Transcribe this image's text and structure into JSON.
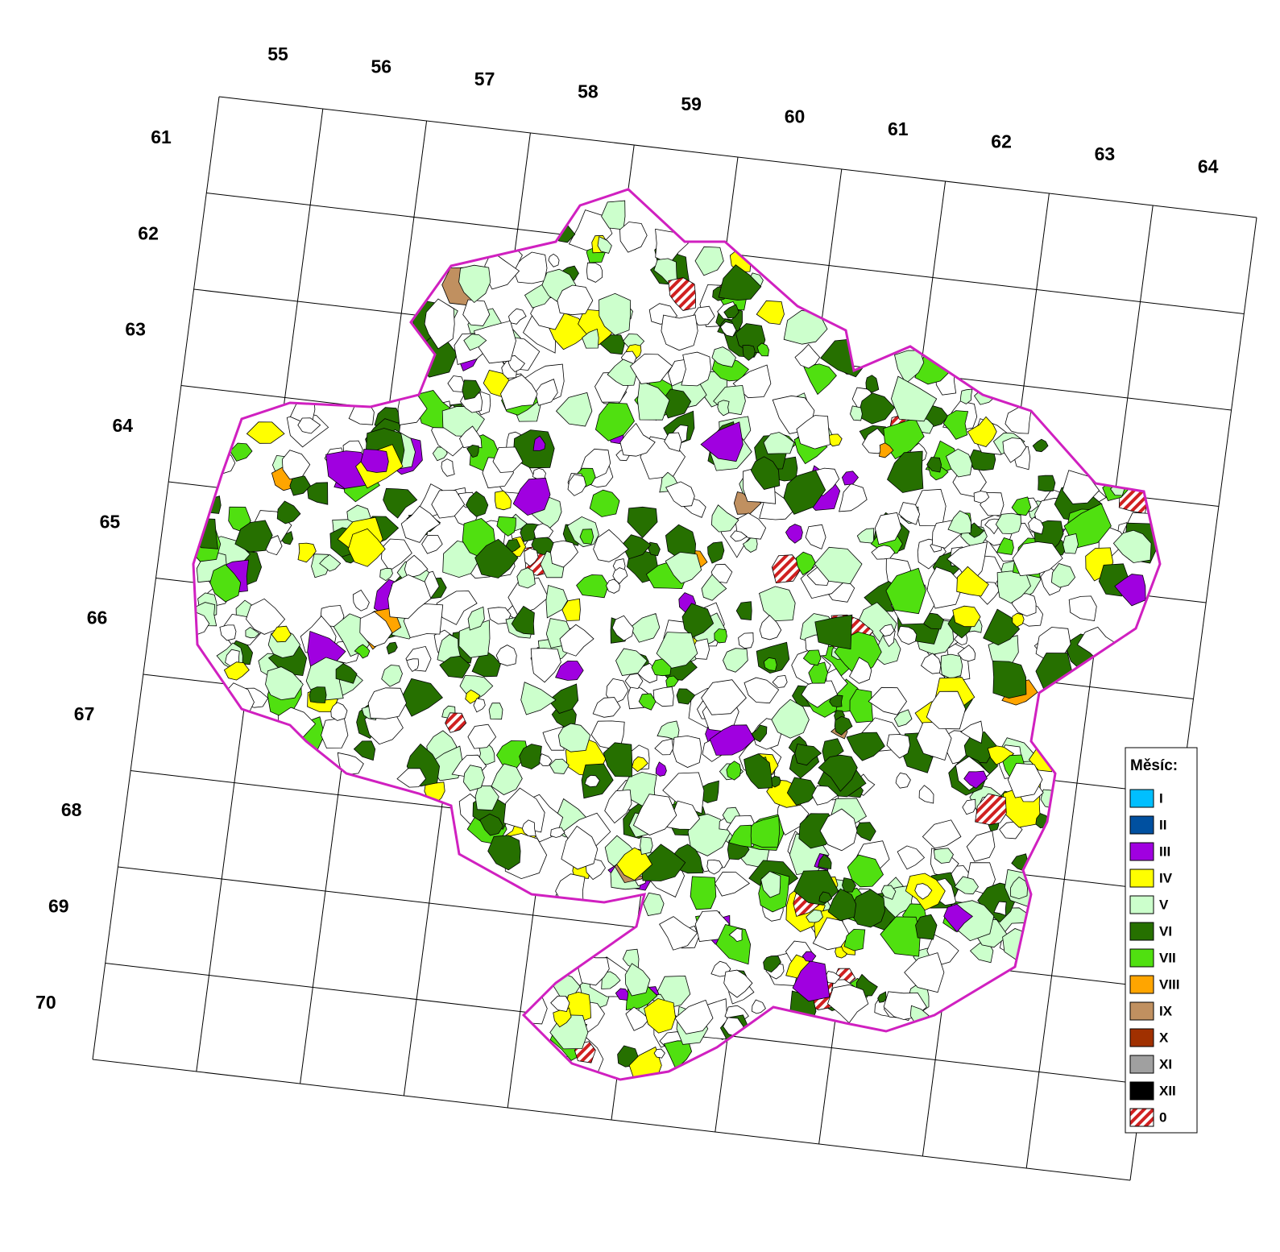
{
  "column_labels": [
    55,
    56,
    57,
    58,
    59,
    60,
    61,
    62,
    63,
    64
  ],
  "row_labels": [
    61,
    62,
    63,
    64,
    65,
    66,
    67,
    68,
    69,
    70
  ],
  "legend": {
    "title": "Měsíc:",
    "items": [
      {
        "label": "I",
        "color": "#00bfff"
      },
      {
        "label": "II",
        "color": "#0050a0"
      },
      {
        "label": "III",
        "color": "#a000e0"
      },
      {
        "label": "IV",
        "color": "#ffff00"
      },
      {
        "label": "V",
        "color": "#ccffcc"
      },
      {
        "label": "VI",
        "color": "#267000"
      },
      {
        "label": "VII",
        "color": "#50e010"
      },
      {
        "label": "VIII",
        "color": "#ffa500"
      },
      {
        "label": "IX",
        "color": "#c09060"
      },
      {
        "label": "X",
        "color": "#a03000"
      },
      {
        "label": "XI",
        "color": "#a0a0a0"
      },
      {
        "label": "XII",
        "color": "#000000"
      },
      {
        "label": "0",
        "color": "#d02020",
        "hatched": true
      }
    ]
  }
}
